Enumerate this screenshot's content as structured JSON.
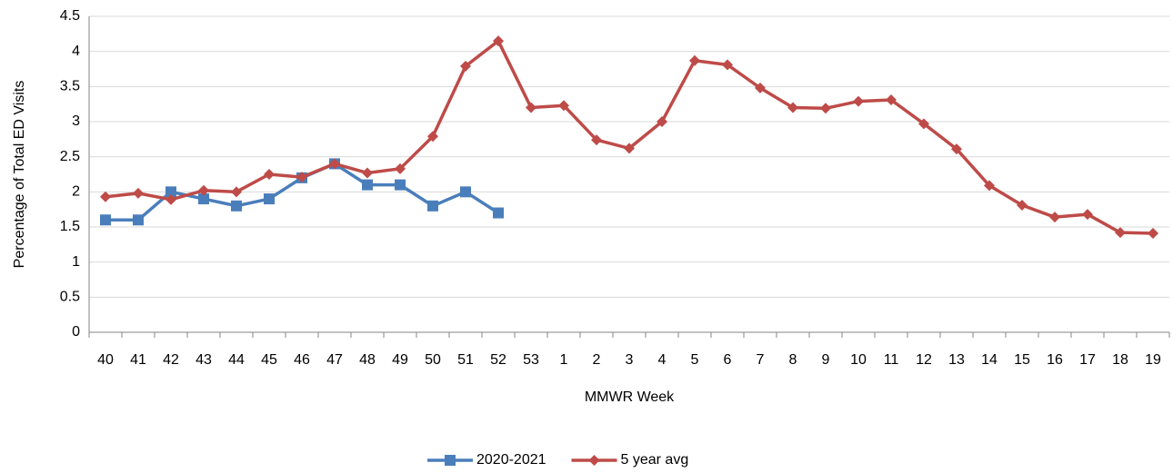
{
  "chart_data": {
    "type": "line",
    "y_label": "Percentage of Total ED Visits",
    "x_label": "MMWR Week",
    "categories": [
      "40",
      "41",
      "42",
      "43",
      "44",
      "45",
      "46",
      "47",
      "48",
      "49",
      "50",
      "51",
      "52",
      "53",
      "1",
      "2",
      "3",
      "4",
      "5",
      "6",
      "7",
      "8",
      "9",
      "10",
      "11",
      "12",
      "13",
      "14",
      "15",
      "16",
      "17",
      "18",
      "19"
    ],
    "series": [
      {
        "name": "2020-2021",
        "color": "#4a7ebb",
        "marker": "square",
        "values": [
          1.6,
          1.6,
          2.0,
          1.9,
          1.8,
          1.9,
          2.2,
          2.4,
          2.1,
          2.1,
          1.8,
          2.0,
          1.7,
          null,
          null,
          null,
          null,
          null,
          null,
          null,
          null,
          null,
          null,
          null,
          null,
          null,
          null,
          null,
          null,
          null,
          null,
          null,
          null
        ]
      },
      {
        "name": "5 year avg",
        "color": "#be4b48",
        "marker": "diamond",
        "values": [
          1.93,
          1.98,
          1.89,
          2.02,
          2.0,
          2.25,
          2.21,
          2.4,
          2.27,
          2.33,
          2.79,
          3.79,
          4.15,
          3.2,
          3.23,
          2.74,
          2.62,
          3.0,
          3.87,
          3.81,
          3.48,
          3.2,
          3.19,
          3.29,
          3.31,
          2.97,
          2.61,
          2.09,
          1.81,
          1.64,
          1.68,
          1.42,
          1.41
        ]
      }
    ],
    "ylim": [
      0,
      4.5
    ],
    "yticks": [
      0,
      0.5,
      1,
      1.5,
      2,
      2.5,
      3,
      3.5,
      4,
      4.5
    ],
    "grid": true,
    "legend": "bottom"
  }
}
